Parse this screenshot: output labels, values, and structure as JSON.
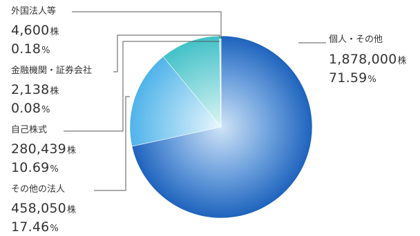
{
  "chart_data": {
    "type": "pie",
    "unit_shares": "株",
    "unit_percent": "%",
    "series": [
      {
        "name": "個人・その他",
        "shares": "1,878,000",
        "percent": "71.59",
        "value": 71.59,
        "color": "#2a6fc4"
      },
      {
        "name": "その他の法人",
        "shares": "458,050",
        "percent": "17.46",
        "value": 17.46,
        "color": "#5fb8ea"
      },
      {
        "name": "自己株式",
        "shares": "280,439",
        "percent": "10.69",
        "value": 10.69,
        "color": "#4ec7cc"
      },
      {
        "name": "金融機関・証券会社",
        "shares": "2,138",
        "percent": "0.08",
        "value": 0.08,
        "color": "#8adbd8"
      },
      {
        "name": "外国法人等",
        "shares": "4,600",
        "percent": "0.18",
        "value": 0.18,
        "color": "#6fd0d2"
      }
    ]
  }
}
